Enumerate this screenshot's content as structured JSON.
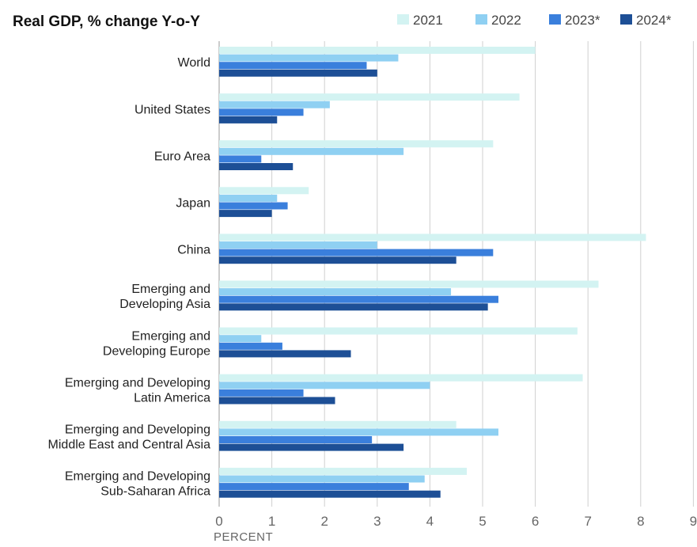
{
  "chart_data": {
    "type": "bar",
    "orientation": "horizontal",
    "title": "Real GDP, % change Y-o-Y",
    "xlabel": "PERCENT",
    "xlim": [
      0,
      9
    ],
    "xticks": [
      "0",
      "1",
      "2",
      "3",
      "4",
      "5",
      "6",
      "7",
      "8",
      "9"
    ],
    "grid": true,
    "legend_position": "top-right",
    "categories": [
      "World",
      "United States",
      "Euro Area",
      "Japan",
      "China",
      "Emerging and Developing Asia",
      "Emerging and Developing Europe",
      "Emerging and Developing Latin America",
      "Emerging and Developing Middle East and Central Asia",
      "Emerging and Developing Sub-Saharan Africa"
    ],
    "category_lines": [
      [
        "World"
      ],
      [
        "United States"
      ],
      [
        "Euro Area"
      ],
      [
        "Japan"
      ],
      [
        "China"
      ],
      [
        "Emerging and",
        "Developing Asia"
      ],
      [
        "Emerging and",
        "Developing Europe"
      ],
      [
        "Emerging and Developing",
        "Latin America"
      ],
      [
        "Emerging and Developing",
        "Middle East and Central Asia"
      ],
      [
        "Emerging and Developing",
        "Sub-Saharan Africa"
      ]
    ],
    "series": [
      {
        "name": "2021",
        "color": "#d3f3f2",
        "values": [
          6.0,
          5.7,
          5.2,
          1.7,
          8.1,
          7.2,
          6.8,
          6.9,
          4.5,
          4.7
        ]
      },
      {
        "name": "2022",
        "color": "#8fd0f2",
        "values": [
          3.4,
          2.1,
          3.5,
          1.1,
          3.0,
          4.4,
          0.8,
          4.0,
          5.3,
          3.9
        ]
      },
      {
        "name": "2023*",
        "color": "#3a7fdc",
        "values": [
          2.8,
          1.6,
          0.8,
          1.3,
          5.2,
          5.3,
          1.2,
          1.6,
          2.9,
          3.6
        ]
      },
      {
        "name": "2024*",
        "color": "#1d4f96",
        "values": [
          3.0,
          1.1,
          1.4,
          1.0,
          4.5,
          5.1,
          2.5,
          2.2,
          3.5,
          4.2
        ]
      }
    ]
  }
}
